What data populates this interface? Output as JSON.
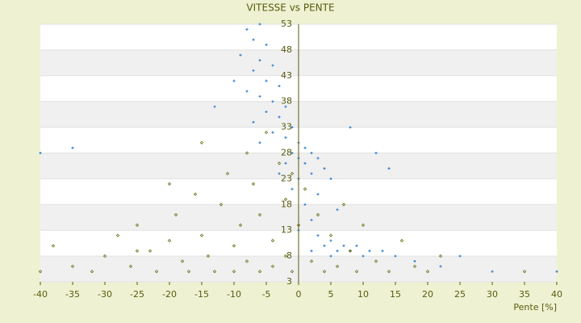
{
  "chart_data": {
    "type": "scatter",
    "title": "VITESSE vs PENTE",
    "x_label": "Pente [%]",
    "xlim": [
      -40,
      40
    ],
    "xticks": [
      -40,
      -35,
      -30,
      -25,
      -20,
      -15,
      -10,
      -5,
      0,
      5,
      10,
      15,
      20,
      25,
      30,
      35,
      40
    ],
    "ylim": [
      3,
      53
    ],
    "yticks": [
      3,
      8,
      13,
      18,
      23,
      28,
      33,
      38,
      43,
      48,
      53
    ],
    "grid": true,
    "series": [
      {
        "color": "#3a85d0",
        "x": [
          -8,
          -7,
          -6,
          -5,
          -9,
          -6,
          -4,
          -7,
          -5,
          -3,
          -8,
          -6,
          -4,
          -2,
          -5,
          -3,
          -7,
          -1,
          -4,
          -2,
          -6,
          0,
          1,
          -1,
          2,
          0,
          3,
          -2,
          1,
          4,
          -3,
          2,
          0,
          5,
          -1,
          3,
          1,
          6,
          2,
          0,
          3,
          5,
          7,
          4,
          9,
          6,
          8,
          11,
          13,
          10,
          15,
          18,
          5,
          2,
          -40,
          -35,
          12,
          22,
          30,
          40,
          -13,
          -10,
          8,
          14,
          25
        ],
        "values": [
          52,
          50,
          53,
          49,
          47,
          46,
          45,
          44,
          42,
          41,
          40,
          39,
          38,
          37,
          36,
          35,
          34,
          33,
          32,
          31,
          30,
          30,
          29,
          28,
          28,
          27,
          27,
          26,
          26,
          25,
          24,
          24,
          23,
          23,
          21,
          20,
          18,
          17,
          15,
          13,
          12,
          11,
          10,
          10,
          10,
          9,
          9,
          9,
          9,
          8,
          8,
          7,
          8,
          9,
          28,
          29,
          28,
          6,
          5,
          5,
          37,
          42,
          33,
          25,
          8
        ]
      },
      {
        "color": "#6b6b12",
        "x": [
          -38,
          -35,
          -32,
          -30,
          -28,
          -26,
          -25,
          -23,
          -22,
          -20,
          -19,
          -18,
          -17,
          -16,
          -15,
          -14,
          -13,
          -12,
          -11,
          -10,
          -10,
          -9,
          -8,
          -8,
          -7,
          -6,
          -6,
          -5,
          -4,
          -4,
          -3,
          -2,
          -2,
          -1,
          -1,
          0,
          1,
          2,
          3,
          4,
          5,
          6,
          7,
          8,
          9,
          10,
          12,
          14,
          16,
          18,
          20,
          22,
          -15,
          -20,
          -25,
          -40,
          35
        ],
        "values": [
          10,
          6,
          5,
          8,
          12,
          6,
          14,
          9,
          5,
          11,
          16,
          7,
          5,
          20,
          12,
          8,
          5,
          18,
          24,
          10,
          5,
          14,
          28,
          7,
          22,
          16,
          5,
          32,
          11,
          6,
          26,
          19,
          8,
          24,
          5,
          14,
          21,
          7,
          16,
          5,
          12,
          6,
          18,
          9,
          5,
          14,
          7,
          5,
          11,
          6,
          5,
          8,
          30,
          22,
          9,
          5,
          5
        ]
      }
    ]
  }
}
